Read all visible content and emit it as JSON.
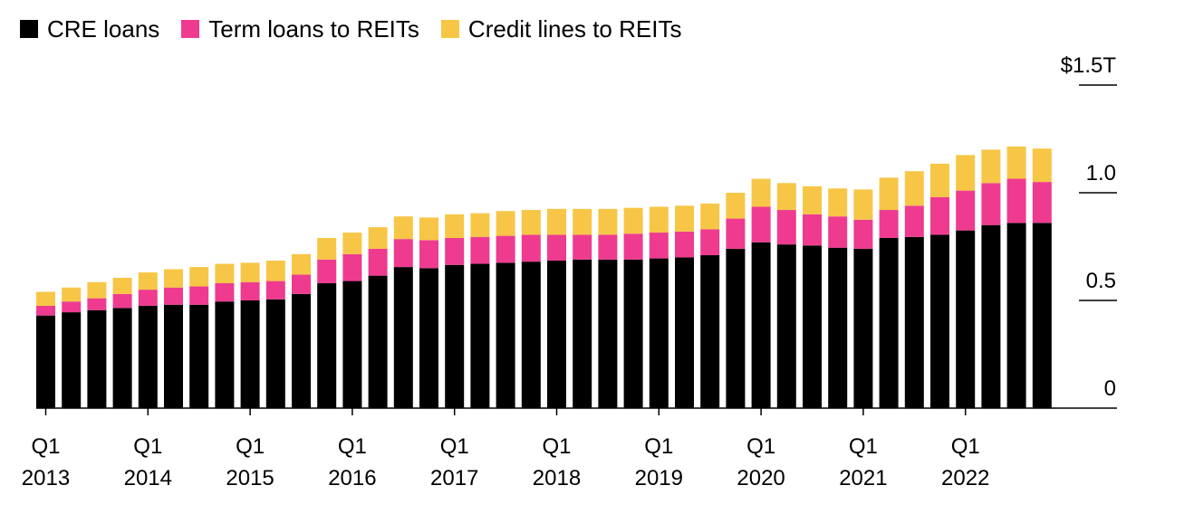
{
  "legend": {
    "cre": "CRE loans",
    "term": "Term loans to REITs",
    "credit": "Credit lines to REITs"
  },
  "colors": {
    "cre": "#000000",
    "term": "#ee3b8f",
    "credit": "#f7c646"
  },
  "chart_data": {
    "type": "bar",
    "stacked": true,
    "legend_position": "top-left",
    "y_axis_position": "right",
    "ylim": [
      0,
      1.5
    ],
    "y_ticks": [
      {
        "value": 0,
        "label": "0"
      },
      {
        "value": 0.5,
        "label": "0.5"
      },
      {
        "value": 1.0,
        "label": "1.0"
      },
      {
        "value": 1.5,
        "label": "$1.5T"
      }
    ],
    "x_tick_labels": [
      {
        "index": 0,
        "q": "Q1",
        "year": "2013"
      },
      {
        "index": 4,
        "q": "Q1",
        "year": "2014"
      },
      {
        "index": 8,
        "q": "Q1",
        "year": "2015"
      },
      {
        "index": 12,
        "q": "Q1",
        "year": "2016"
      },
      {
        "index": 16,
        "q": "Q1",
        "year": "2017"
      },
      {
        "index": 20,
        "q": "Q1",
        "year": "2018"
      },
      {
        "index": 24,
        "q": "Q1",
        "year": "2019"
      },
      {
        "index": 28,
        "q": "Q1",
        "year": "2020"
      },
      {
        "index": 32,
        "q": "Q1",
        "year": "2021"
      },
      {
        "index": 36,
        "q": "Q1",
        "year": "2022"
      }
    ],
    "categories": [
      "2013 Q1",
      "2013 Q2",
      "2013 Q3",
      "2013 Q4",
      "2014 Q1",
      "2014 Q2",
      "2014 Q3",
      "2014 Q4",
      "2015 Q1",
      "2015 Q2",
      "2015 Q3",
      "2015 Q4",
      "2016 Q1",
      "2016 Q2",
      "2016 Q3",
      "2016 Q4",
      "2017 Q1",
      "2017 Q2",
      "2017 Q3",
      "2017 Q4",
      "2018 Q1",
      "2018 Q2",
      "2018 Q3",
      "2018 Q4",
      "2019 Q1",
      "2019 Q2",
      "2019 Q3",
      "2019 Q4",
      "2020 Q1",
      "2020 Q2",
      "2020 Q3",
      "2020 Q4",
      "2021 Q1",
      "2021 Q2",
      "2021 Q3",
      "2021 Q4",
      "2022 Q1",
      "2022 Q2",
      "2022 Q3",
      "2022 Q4"
    ],
    "series": [
      {
        "name": "CRE loans",
        "key": "cre",
        "values": [
          0.43,
          0.445,
          0.455,
          0.465,
          0.475,
          0.48,
          0.48,
          0.495,
          0.5,
          0.505,
          0.53,
          0.58,
          0.59,
          0.615,
          0.655,
          0.65,
          0.665,
          0.67,
          0.675,
          0.68,
          0.685,
          0.69,
          0.69,
          0.69,
          0.695,
          0.7,
          0.71,
          0.74,
          0.77,
          0.76,
          0.755,
          0.745,
          0.74,
          0.79,
          0.795,
          0.805,
          0.825,
          0.85,
          0.86,
          0.86
        ]
      },
      {
        "name": "Term loans to REITs",
        "key": "term",
        "values": [
          0.045,
          0.05,
          0.055,
          0.065,
          0.075,
          0.08,
          0.085,
          0.085,
          0.085,
          0.085,
          0.09,
          0.11,
          0.125,
          0.125,
          0.13,
          0.13,
          0.125,
          0.125,
          0.125,
          0.125,
          0.12,
          0.115,
          0.115,
          0.12,
          0.12,
          0.12,
          0.12,
          0.14,
          0.165,
          0.16,
          0.145,
          0.145,
          0.135,
          0.13,
          0.145,
          0.175,
          0.185,
          0.195,
          0.205,
          0.19
        ]
      },
      {
        "name": "Credit lines to REITs",
        "key": "credit",
        "values": [
          0.065,
          0.065,
          0.075,
          0.075,
          0.08,
          0.085,
          0.09,
          0.09,
          0.09,
          0.095,
          0.095,
          0.1,
          0.1,
          0.1,
          0.105,
          0.105,
          0.11,
          0.11,
          0.115,
          0.115,
          0.12,
          0.12,
          0.12,
          0.12,
          0.12,
          0.12,
          0.12,
          0.12,
          0.13,
          0.125,
          0.13,
          0.13,
          0.14,
          0.15,
          0.16,
          0.155,
          0.165,
          0.155,
          0.15,
          0.155
        ]
      }
    ]
  }
}
